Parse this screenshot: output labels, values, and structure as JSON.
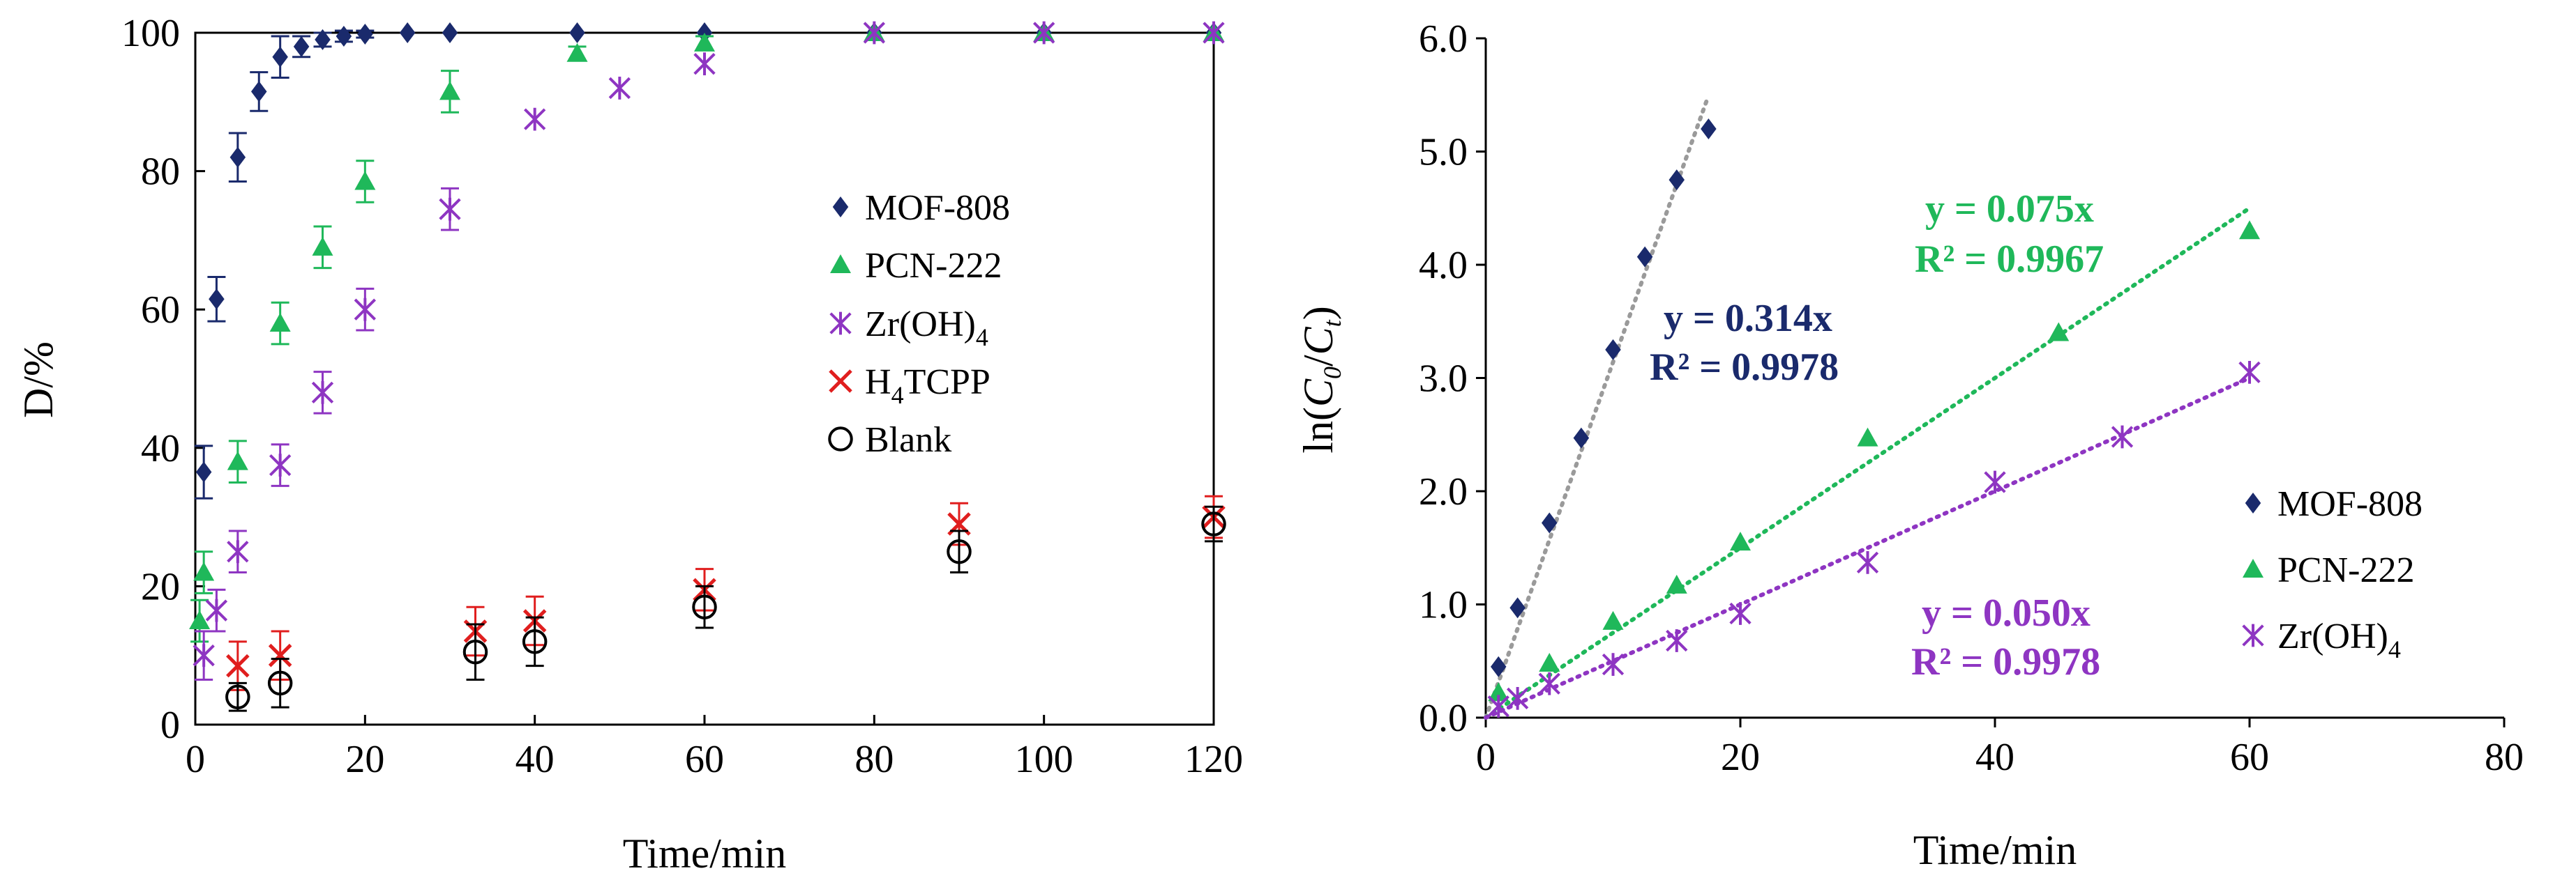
{
  "chart_data": [
    {
      "type": "scatter",
      "title": "",
      "xlabel": "Time/min",
      "ylabel": "D/%",
      "xlim": [
        0,
        120
      ],
      "ylim": [
        0,
        100
      ],
      "xticks": [
        "0",
        "20",
        "40",
        "60",
        "80",
        "100",
        "120"
      ],
      "yticks": [
        "0",
        "20",
        "40",
        "60",
        "80",
        "100"
      ],
      "legend_position": "right-middle",
      "series": [
        {
          "name": "MOF-808",
          "marker": "diamond",
          "color": "#1a2a6c",
          "points": [
            [
              1,
              36.5
            ],
            [
              2.5,
              61.5
            ],
            [
              5,
              82
            ],
            [
              7.5,
              91.5
            ],
            [
              10,
              96.5
            ],
            [
              12.5,
              98
            ],
            [
              15,
              99
            ],
            [
              17.5,
              99.5
            ],
            [
              20,
              99.8
            ],
            [
              25,
              100
            ],
            [
              30,
              100
            ],
            [
              45,
              100
            ],
            [
              60,
              100
            ],
            [
              80,
              100
            ],
            [
              100,
              100
            ],
            [
              120,
              100
            ]
          ],
          "errors": [
            3.8,
            3.2,
            3.5,
            2.8,
            3,
            1.5,
            1,
            0.8,
            0.5,
            0,
            0,
            0,
            0,
            0,
            0,
            0
          ]
        },
        {
          "name": "PCN-222",
          "marker": "triangle",
          "color": "#1fb85a",
          "points": [
            [
              0.5,
              15
            ],
            [
              1,
              22
            ],
            [
              5,
              38
            ],
            [
              10,
              58
            ],
            [
              15,
              69
            ],
            [
              20,
              78.5
            ],
            [
              30,
              91.5
            ],
            [
              45,
              97
            ],
            [
              60,
              98.5
            ],
            [
              80,
              100
            ],
            [
              100,
              100
            ],
            [
              120,
              100
            ]
          ],
          "errors": [
            3,
            3,
            3,
            3,
            3,
            3,
            3,
            1,
            1,
            0,
            0,
            0
          ]
        },
        {
          "name": "Zr(OH)4",
          "label_main": "Zr(OH)",
          "label_sub": "4",
          "marker": "star",
          "color": "#8e35c2",
          "points": [
            [
              1,
              10
            ],
            [
              2.5,
              16.5
            ],
            [
              5,
              25
            ],
            [
              10,
              37.5
            ],
            [
              15,
              48
            ],
            [
              20,
              60
            ],
            [
              30,
              74.5
            ],
            [
              40,
              87.5
            ],
            [
              50,
              92
            ],
            [
              60,
              95.5
            ],
            [
              80,
              100
            ],
            [
              100,
              100
            ],
            [
              120,
              100
            ]
          ],
          "errors": [
            3.5,
            3,
            3,
            3,
            3,
            3,
            3,
            0,
            0,
            0,
            0,
            0,
            0
          ]
        },
        {
          "name": "H4TCPP",
          "label_main": "H",
          "label_sub": "4",
          "label_tail": "TCPP",
          "marker": "x",
          "color": "#e01e1e",
          "points": [
            [
              5,
              8.5
            ],
            [
              10,
              10
            ],
            [
              33,
              13.5
            ],
            [
              40,
              15
            ],
            [
              60,
              19.5
            ],
            [
              90,
              29
            ],
            [
              120,
              30
            ]
          ],
          "errors": [
            3.5,
            3.5,
            3.5,
            3.5,
            3,
            3,
            3
          ]
        },
        {
          "name": "Blank",
          "marker": "circle",
          "color": "#000000",
          "points": [
            [
              5,
              4
            ],
            [
              10,
              6
            ],
            [
              33,
              10.5
            ],
            [
              40,
              12
            ],
            [
              60,
              17
            ],
            [
              90,
              25
            ],
            [
              120,
              29
            ]
          ],
          "errors": [
            2,
            3.5,
            4,
            3.5,
            3,
            3,
            2.5
          ]
        }
      ]
    },
    {
      "type": "scatter",
      "title": "",
      "xlabel": "Time/min",
      "ylabel": "ln(C0/Ct)",
      "ylabel_parts": {
        "pre": "ln(",
        "c1": "C",
        "s1": "0",
        "slash": "/",
        "c2": "C",
        "s2": "t",
        "post": ")"
      },
      "xlim": [
        0,
        80
      ],
      "ylim": [
        0,
        6
      ],
      "xticks": [
        "0",
        "20",
        "40",
        "60",
        "80"
      ],
      "yticks": [
        "0.0",
        "1.0",
        "2.0",
        "3.0",
        "4.0",
        "5.0",
        "6.0"
      ],
      "legend_position": "bottom-right",
      "series": [
        {
          "name": "MOF-808",
          "marker": "diamond",
          "color": "#1a2a6c",
          "trend_color": "#9a9a9a",
          "slope": 0.314,
          "fit_x": [
            0,
            17.4
          ],
          "equation": "y = 0.314x",
          "r2": "R² = 0.9978",
          "points": [
            [
              1,
              0.45
            ],
            [
              2.5,
              0.97
            ],
            [
              5,
              1.72
            ],
            [
              7.5,
              2.47
            ],
            [
              10,
              3.25
            ],
            [
              12.5,
              4.07
            ],
            [
              15,
              4.75
            ],
            [
              17.5,
              5.2
            ]
          ]
        },
        {
          "name": "PCN-222",
          "marker": "triangle",
          "color": "#1fb85a",
          "trend_color": "#1fb85a",
          "slope": 0.075,
          "fit_x": [
            0,
            60
          ],
          "equation": "y = 0.075x",
          "r2": "R² = 0.9967",
          "points": [
            [
              1,
              0.22
            ],
            [
              5,
              0.48
            ],
            [
              10,
              0.85
            ],
            [
              15,
              1.17
            ],
            [
              20,
              1.55
            ],
            [
              30,
              2.47
            ],
            [
              45,
              3.4
            ],
            [
              60,
              4.3
            ]
          ]
        },
        {
          "name": "Zr(OH)4",
          "label_main": "Zr(OH)",
          "label_sub": "4",
          "marker": "star",
          "color": "#8e35c2",
          "trend_color": "#8e35c2",
          "slope": 0.05,
          "fit_x": [
            0,
            60
          ],
          "equation": "y = 0.050x",
          "r2": "R² = 0.9978",
          "points": [
            [
              1,
              0.1
            ],
            [
              2.5,
              0.17
            ],
            [
              5,
              0.3
            ],
            [
              10,
              0.47
            ],
            [
              15,
              0.68
            ],
            [
              20,
              0.92
            ],
            [
              30,
              1.37
            ],
            [
              40,
              2.08
            ],
            [
              50,
              2.48
            ],
            [
              60,
              3.05
            ]
          ]
        }
      ]
    }
  ]
}
